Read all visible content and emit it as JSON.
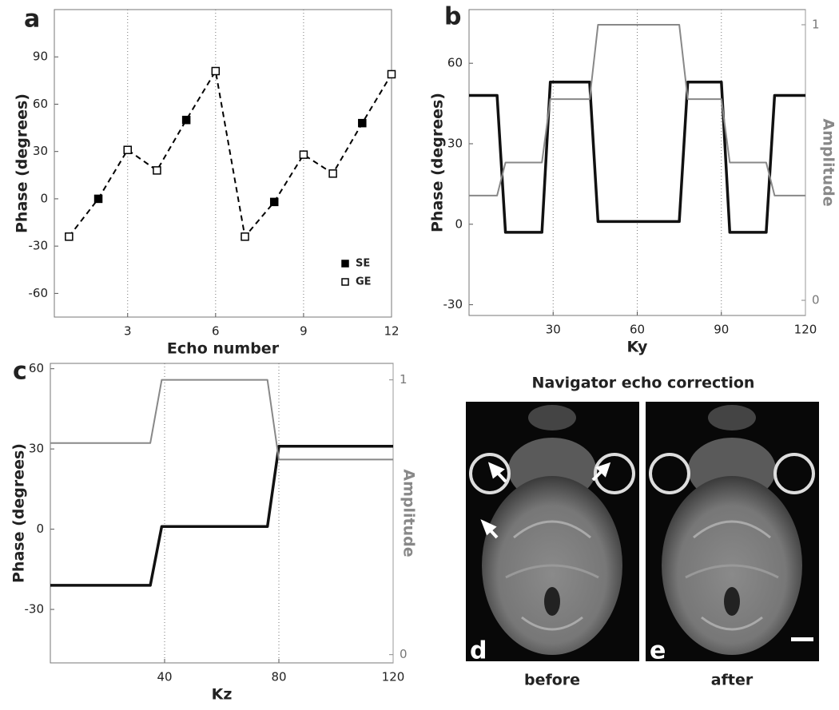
{
  "chart_data": [
    {
      "type": "line",
      "label": "a",
      "xlabel": "Echo number",
      "ylabel": "Phase (degrees)",
      "x": [
        1,
        2,
        3,
        4,
        5,
        6,
        7,
        8,
        9,
        10,
        11,
        12
      ],
      "values": [
        -24,
        0,
        31,
        18,
        50,
        81,
        -24,
        -2,
        28,
        16,
        48,
        79
      ],
      "point_series": [
        1,
        0,
        1,
        1,
        0,
        1,
        1,
        0,
        1,
        1,
        0,
        1
      ],
      "series": [
        {
          "name": "SE",
          "color": "#000000",
          "marker": "filled"
        },
        {
          "name": "GE",
          "color": "#000000",
          "marker": "open"
        }
      ],
      "linestyle": "dashed",
      "legend": "lower right",
      "xgrid": true,
      "xlim": [
        0.5,
        12
      ],
      "ylim": [
        -75,
        120
      ],
      "xticks": [
        3,
        6,
        9,
        12
      ],
      "yticks": [
        -60,
        -30,
        0,
        30,
        60,
        90
      ]
    },
    {
      "type": "line",
      "label": "b",
      "xlabel": "Ky",
      "ylabel": "Phase (degrees)",
      "y2label": "Amplitude",
      "x": [
        0,
        10,
        13,
        26,
        29,
        43,
        46,
        75,
        78,
        90,
        93,
        106,
        109,
        120
      ],
      "series": [
        {
          "color": "#111111",
          "values": [
            48,
            48,
            -3,
            -3,
            53,
            53,
            1,
            1,
            53,
            53,
            -3,
            -3,
            48,
            48
          ]
        },
        {
          "color": "#888888",
          "axis": "y2",
          "values": [
            0.38,
            0.38,
            0.5,
            0.5,
            0.73,
            0.73,
            1,
            1,
            0.73,
            0.73,
            0.5,
            0.5,
            0.38,
            0.38
          ]
        }
      ],
      "xgrid": true,
      "xlim": [
        0,
        120
      ],
      "ylim": [
        -34,
        80
      ],
      "y2lim": [
        -0.055,
        1.055
      ],
      "xticks": [
        30,
        60,
        90,
        120
      ],
      "yticks": [
        -30,
        0,
        30,
        60
      ],
      "y2ticks": [
        0,
        1
      ]
    },
    {
      "type": "line",
      "label": "c",
      "xlabel": "Kz",
      "ylabel": "Phase (degrees)",
      "y2label": "Amplitude",
      "x": [
        0,
        35,
        39,
        76,
        80,
        120
      ],
      "series": [
        {
          "color": "#111111",
          "values": [
            -21,
            -21,
            1,
            1,
            31,
            31
          ]
        },
        {
          "color": "#888888",
          "axis": "y2",
          "values": [
            0.77,
            0.77,
            1,
            1,
            0.71,
            0.71
          ]
        }
      ],
      "xgrid": true,
      "xlim": [
        0,
        120
      ],
      "ylim": [
        -50,
        62
      ],
      "y2lim": [
        -0.03,
        1.06
      ],
      "xticks": [
        40,
        80,
        120
      ],
      "yticks": [
        -30,
        0,
        30,
        60
      ],
      "y2ticks": [
        0,
        1
      ]
    }
  ],
  "images": {
    "title": "Navigator echo correction",
    "panels": [
      {
        "letter": "d",
        "caption": "before"
      },
      {
        "letter": "e",
        "caption": "after"
      }
    ]
  }
}
